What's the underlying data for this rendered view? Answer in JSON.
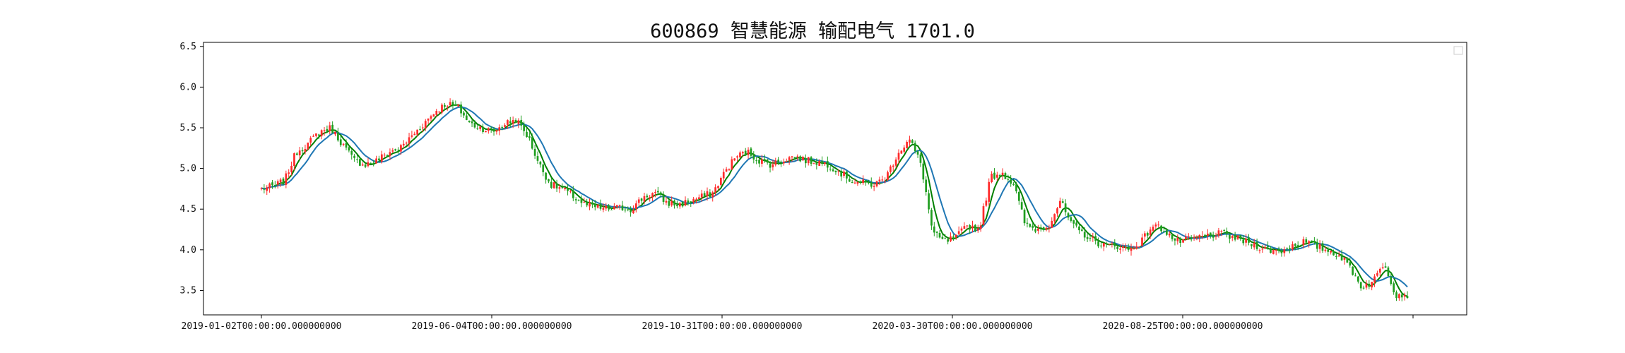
{
  "title": "600869 智慧能源 输配电气 1701.0",
  "chart_data": {
    "type": "candlestick",
    "title": "600869 智慧能源 输配电气 1701.0",
    "xlabel": "",
    "ylabel": "",
    "x_tick_labels": [
      "2019-01-02T00:00:00.000000000",
      "2019-06-04T00:00:00.000000000",
      "2019-10-31T00:00:00.000000000",
      "2020-03-30T00:00:00.000000000",
      "2020-08-25T00:00:00.000000000"
    ],
    "y_ticks": [
      3.5,
      4.0,
      4.5,
      5.0,
      5.5,
      6.0,
      6.5
    ],
    "ylim": [
      3.2,
      6.55
    ],
    "legend": "top-right (empty)",
    "up_color": "#ff2a2a",
    "down_color": "#1f9e1f",
    "ma_short_color": "#008000",
    "ma_long_color": "#1f77b4",
    "series": [
      {
        "name": "",
        "values": [
          4.75,
          4.78,
          4.85,
          5.2,
          5.3,
          5.45,
          5.5,
          5.3,
          5.1,
          5.05,
          5.1,
          5.2,
          5.25,
          5.4,
          5.55,
          5.7,
          5.8,
          5.75,
          5.55,
          5.5,
          5.45,
          5.55,
          5.6,
          5.4,
          5.05,
          4.8,
          4.75,
          4.65,
          4.55,
          4.52,
          4.5,
          4.52,
          4.5,
          4.65,
          4.7,
          4.58,
          4.55,
          4.6,
          4.65,
          4.7,
          4.95,
          5.15,
          5.2,
          5.1,
          5.05,
          5.1,
          5.15,
          5.1,
          5.08,
          5.05,
          4.95,
          4.85,
          4.82,
          4.8,
          4.9,
          5.2,
          5.35,
          5.05,
          4.2,
          4.1,
          4.15,
          4.3,
          4.25,
          4.9,
          4.95,
          4.8,
          4.3,
          4.25,
          4.3,
          4.6,
          4.3,
          4.2,
          4.1,
          4.05,
          4.05,
          4.0,
          4.1,
          4.3,
          4.25,
          4.1,
          4.12,
          4.15,
          4.18,
          4.2,
          4.15,
          4.1,
          4.05,
          4.0,
          3.98,
          4.05,
          4.1,
          4.05,
          4.0,
          3.95,
          3.8,
          3.55,
          3.6,
          3.85,
          3.45,
          3.45
        ]
      }
    ]
  }
}
